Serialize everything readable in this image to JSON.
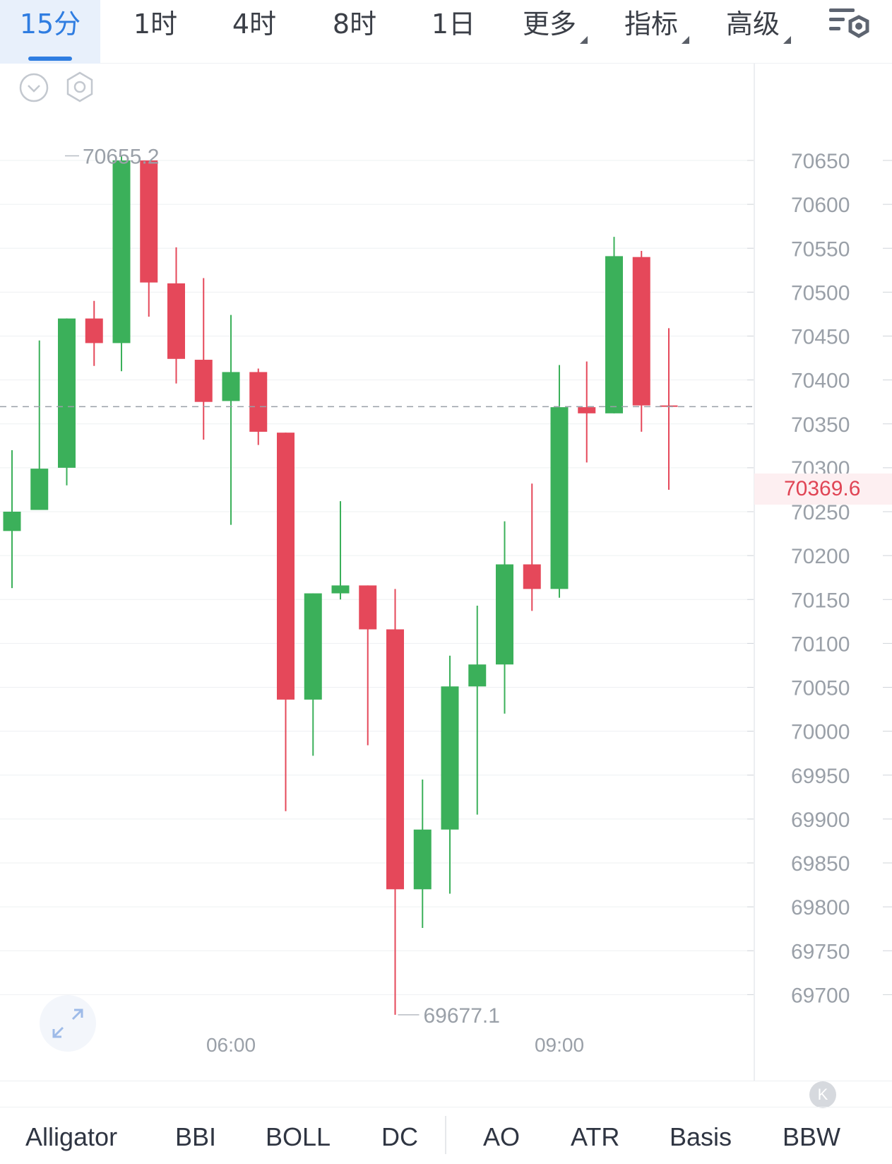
{
  "intervals": [
    {
      "label": "15分",
      "active": true
    },
    {
      "label": "1时",
      "active": false
    },
    {
      "label": "4时",
      "active": false
    },
    {
      "label": "8时",
      "active": false
    },
    {
      "label": "1日",
      "active": false
    }
  ],
  "menus": {
    "more": "更多",
    "indicators": "指标",
    "advanced": "高级"
  },
  "chart_data": {
    "type": "candlestick",
    "y_ticks": [
      "70650",
      "70600",
      "70550",
      "70500",
      "70450",
      "70400",
      "70350",
      "70300",
      "70250",
      "70200",
      "70150",
      "70100",
      "70050",
      "70000",
      "69950",
      "69900",
      "69850",
      "69800",
      "69750",
      "69700"
    ],
    "x_ticks": [
      "06:00",
      "09:00"
    ],
    "ylim": [
      69655,
      70670
    ],
    "current_price": "70369.6",
    "high_label": "70655.2",
    "low_label": "69677.1",
    "candles": [
      {
        "open": 70228,
        "close": 70250,
        "high": 70320,
        "low": 70163
      },
      {
        "open": 70252,
        "close": 70299,
        "high": 70445,
        "low": 70252
      },
      {
        "open": 70300,
        "close": 70470,
        "high": 70470,
        "low": 70280
      },
      {
        "open": 70470,
        "close": 70442,
        "high": 70490,
        "low": 70416
      },
      {
        "open": 70442,
        "close": 70650,
        "high": 70655.2,
        "low": 70410
      },
      {
        "open": 70650,
        "close": 70511,
        "high": 70650,
        "low": 70472
      },
      {
        "open": 70510,
        "close": 70424,
        "high": 70551,
        "low": 70396
      },
      {
        "open": 70423,
        "close": 70375,
        "high": 70516,
        "low": 70332
      },
      {
        "open": 70376,
        "close": 70409,
        "high": 70474,
        "low": 70235
      },
      {
        "open": 70409,
        "close": 70341,
        "high": 70413,
        "low": 70326
      },
      {
        "open": 70340,
        "close": 70036,
        "high": 70340,
        "low": 69909
      },
      {
        "open": 70036,
        "close": 70157,
        "high": 70157,
        "low": 69972
      },
      {
        "open": 70157,
        "close": 70166,
        "high": 70262,
        "low": 70150
      },
      {
        "open": 70166,
        "close": 70116,
        "high": 70166,
        "low": 69984
      },
      {
        "open": 70116,
        "close": 69820,
        "high": 70162,
        "low": 69677.1
      },
      {
        "open": 69820,
        "close": 69888,
        "high": 69945,
        "low": 69776
      },
      {
        "open": 69888,
        "close": 70051,
        "high": 70086,
        "low": 69815
      },
      {
        "open": 70051,
        "close": 70076,
        "high": 70143,
        "low": 69905
      },
      {
        "open": 70076,
        "close": 70190,
        "high": 70239,
        "low": 70020
      },
      {
        "open": 70190,
        "close": 70162,
        "high": 70282,
        "low": 70137
      },
      {
        "open": 70162,
        "close": 70369,
        "high": 70417,
        "low": 70152
      },
      {
        "open": 70369,
        "close": 70362,
        "high": 70421,
        "low": 70306
      },
      {
        "open": 70362,
        "close": 70541,
        "high": 70563,
        "low": 70362
      },
      {
        "open": 70540,
        "close": 70371,
        "high": 70547,
        "low": 70341
      },
      {
        "open": 70371,
        "close": 70369.6,
        "high": 70459,
        "low": 70275
      }
    ]
  },
  "indicators": [
    "Alligator",
    "BBI",
    "BOLL",
    "DC",
    "AO",
    "ATR",
    "Basis",
    "BBW"
  ],
  "badge": "K",
  "colors": {
    "up": "#3bb05a",
    "down": "#e5485a",
    "accent": "#2f7de1",
    "grid": "#eef0f2"
  },
  "icons": [
    "chevron-down-circle-icon",
    "hexagon-settings-icon",
    "expand-arrows-icon",
    "chart-settings-icon"
  ]
}
